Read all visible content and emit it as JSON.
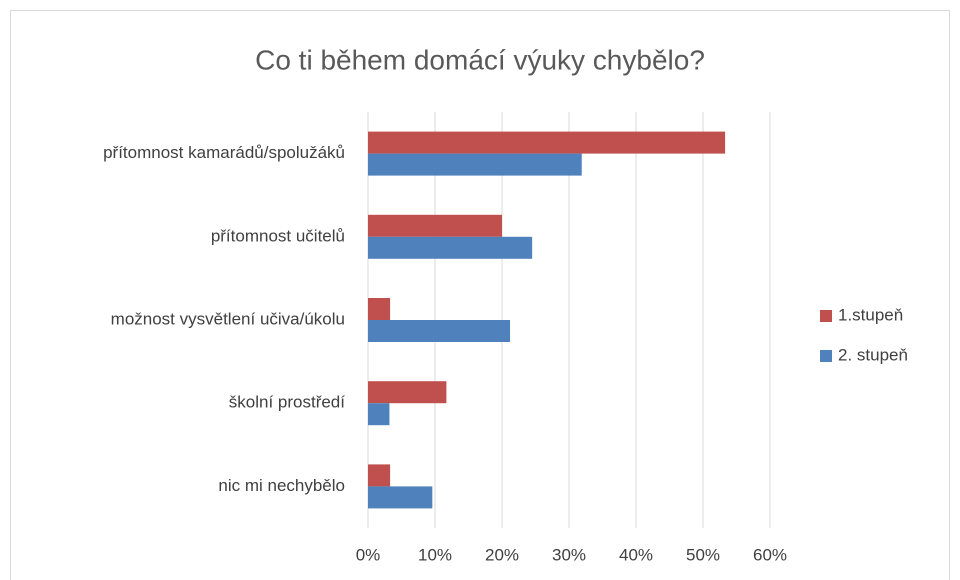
{
  "chart_data": {
    "type": "hbar",
    "title": "Co ti během domácí výuky chybělo?",
    "categories": [
      "přítomnost kamarádů/spolužáků",
      "přítomnost učitelů",
      "možnost vysvětlení učiva/úkolu",
      "školní prostředí",
      "nic mi nechybělo"
    ],
    "series": [
      {
        "name": "1.stupeň",
        "color": "#c0504d",
        "values": [
          53.3,
          20,
          3.3,
          11.7,
          3.3
        ]
      },
      {
        "name": "2. stupeň",
        "color": "#4f81bd",
        "values": [
          31.9,
          24.5,
          21.2,
          3.2,
          9.6
        ]
      }
    ],
    "xlim": [
      0,
      60
    ],
    "xticks": [
      {
        "value": 0,
        "label": "0%"
      },
      {
        "value": 10,
        "label": "10%"
      },
      {
        "value": 20,
        "label": "20%"
      },
      {
        "value": 30,
        "label": "30%"
      },
      {
        "value": 40,
        "label": "40%"
      },
      {
        "value": 50,
        "label": "50%"
      },
      {
        "value": 60,
        "label": "60%"
      }
    ],
    "grid": true,
    "legend": "right"
  }
}
